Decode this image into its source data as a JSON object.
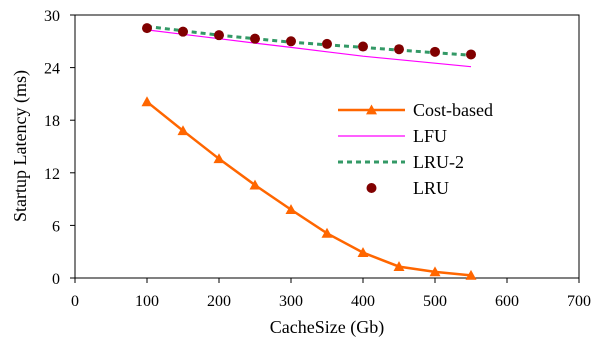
{
  "chart_data": {
    "type": "line",
    "title": "",
    "xlabel": "CacheSize (Gb)",
    "ylabel": "Startup Latency (ms)",
    "xlim": [
      0,
      700
    ],
    "ylim": [
      0,
      30
    ],
    "xticks": [
      "0",
      "100",
      "200",
      "300",
      "400",
      "500",
      "600",
      "700"
    ],
    "yticks": [
      "0",
      "6",
      "12",
      "18",
      "24",
      "30"
    ],
    "grid": false,
    "legend_position": "right-center",
    "x": [
      100,
      150,
      200,
      250,
      300,
      350,
      400,
      450,
      500,
      550
    ],
    "series": [
      {
        "name": "Cost-based",
        "style": "solid-line-triangle",
        "color": "#ff6600",
        "values": [
          20.1,
          16.8,
          13.6,
          10.6,
          7.8,
          5.1,
          2.9,
          1.3,
          0.7,
          0.3
        ]
      },
      {
        "name": "LFU",
        "style": "solid-line",
        "color": "#ff00ff",
        "values": [
          28.3,
          27.8,
          27.3,
          26.8,
          26.3,
          25.8,
          25.3,
          24.9,
          24.5,
          24.1
        ]
      },
      {
        "name": "LRU-2",
        "style": "dashed-line",
        "color": "#339966",
        "values": [
          28.7,
          28.2,
          27.7,
          27.3,
          26.9,
          26.6,
          26.3,
          26.0,
          25.7,
          25.4
        ]
      },
      {
        "name": "LRU",
        "style": "markers-circle",
        "color": "#800000",
        "values": [
          28.5,
          28.1,
          27.7,
          27.3,
          27.0,
          26.7,
          26.4,
          26.1,
          25.8,
          25.5
        ]
      }
    ]
  }
}
